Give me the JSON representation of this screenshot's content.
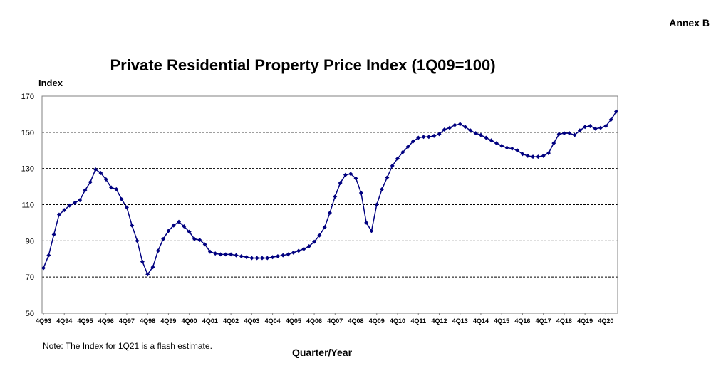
{
  "annex": "Annex B",
  "note": "Note: The Index for 1Q21 is a flash estimate.",
  "chart_data": {
    "type": "line",
    "title": "Private Residential Property Price Index (1Q09=100)",
    "ylabel": "Index",
    "xlabel": "Quarter/Year",
    "ylim": [
      50,
      170
    ],
    "yticks": [
      50,
      70,
      90,
      110,
      130,
      150,
      170
    ],
    "grid": "horizontal dashed",
    "line_color": "#000080",
    "x_tick_labels": [
      "4Q93",
      "4Q94",
      "4Q95",
      "4Q96",
      "4Q97",
      "4Q98",
      "4Q99",
      "4Q00",
      "4Q01",
      "4Q02",
      "4Q03",
      "4Q04",
      "4Q05",
      "4Q06",
      "4Q07",
      "4Q08",
      "4Q09",
      "4Q10",
      "4Q11",
      "4Q12",
      "4Q13",
      "4Q14",
      "4Q15",
      "4Q16",
      "4Q17",
      "4Q18",
      "4Q19",
      "4Q20"
    ],
    "first_quarter": "4Q93",
    "last_quarter": "1Q21",
    "series": [
      {
        "values": [
          75,
          82,
          93.5,
          104.5,
          107,
          109.5,
          111,
          112.5,
          118,
          122.5,
          129.5,
          127.5,
          124,
          119.5,
          118.5,
          113,
          108.5,
          98.5,
          90,
          78.5,
          71.5,
          75.5,
          84.5,
          91,
          95.5,
          98.5,
          100.5,
          98,
          95,
          91,
          90.5,
          88,
          84,
          83,
          82.5,
          82.5,
          82.5,
          82,
          81.5,
          81,
          80.5,
          80.5,
          80.5,
          80.5,
          81,
          81.5,
          82,
          82.5,
          83.5,
          84.5,
          85.5,
          87,
          89.5,
          93,
          97.5,
          105.5,
          114.5,
          122,
          126.5,
          127,
          124.5,
          116.5,
          100,
          95.5,
          110,
          118.5,
          125,
          131.5,
          135.5,
          139,
          142,
          145,
          147,
          147.5,
          147.5,
          148,
          149,
          151.5,
          152.5,
          154,
          154.5,
          153,
          151,
          149.5,
          148.5,
          147,
          145.5,
          144,
          142.5,
          141.5,
          141,
          140,
          138,
          137,
          136.5,
          136.5,
          137,
          138.5,
          144,
          149,
          149.5,
          149.5,
          148.5,
          151,
          153,
          153.5,
          152,
          152.5,
          153.5,
          157,
          161.5
        ]
      }
    ]
  }
}
